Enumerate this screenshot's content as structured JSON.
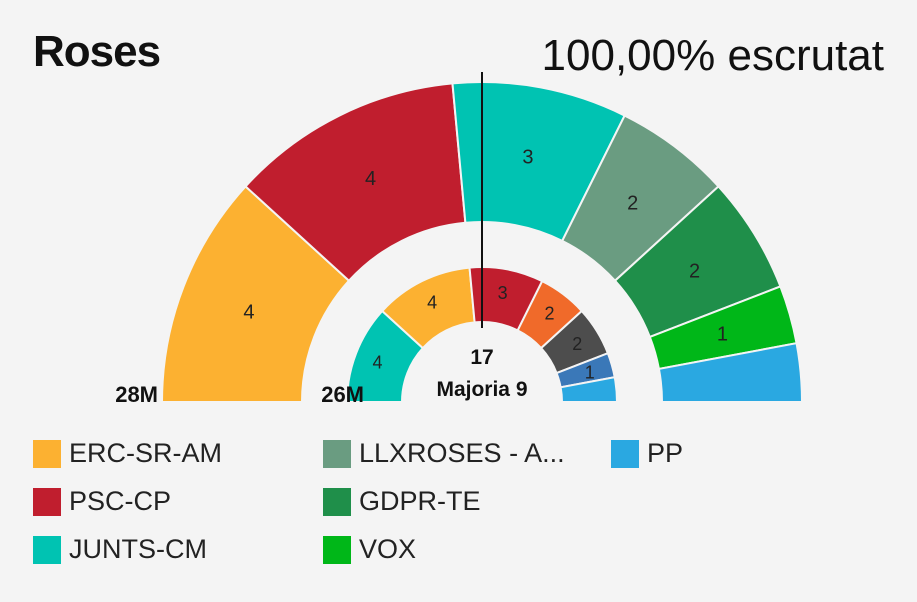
{
  "header": {
    "title": "Roses",
    "count_status": "100,00% escrutat"
  },
  "chart_data": {
    "type": "parliament-semicircle",
    "total_seats": 17,
    "majority_label": "Majoria 9",
    "rings": [
      {
        "label": "28M",
        "seats": [
          {
            "party": "ERC-SR-AM",
            "value": 4,
            "color": "#fcb131"
          },
          {
            "party": "PSC-CP",
            "value": 4,
            "color": "#c01e2e"
          },
          {
            "party": "JUNTS-CM",
            "value": 3,
            "color": "#00c3b2"
          },
          {
            "party": "LLXROSES - A...",
            "value": 2,
            "color": "#6a9c81"
          },
          {
            "party": "GDPR-TE",
            "value": 2,
            "color": "#1f8f4a"
          },
          {
            "party": "VOX",
            "value": 1,
            "color": "#00b718"
          },
          {
            "party": "PP",
            "value": 1,
            "color": "#2aa8e1"
          }
        ]
      },
      {
        "label": "26M",
        "seats": [
          {
            "party": "JUNTS-CM",
            "value": 4,
            "color": "#00c3b2"
          },
          {
            "party": "ERC-SR-AM",
            "value": 4,
            "color": "#fcb131"
          },
          {
            "party": "PSC-CP",
            "value": 3,
            "color": "#c01e2e"
          },
          {
            "party": "",
            "value": 2,
            "color": "#f06a2a"
          },
          {
            "party": "",
            "value": 2,
            "color": "#4d4d4d"
          },
          {
            "party": "",
            "value": 1,
            "color": "#3a78b8"
          },
          {
            "party": "PP",
            "value": 1,
            "color": "#2aa8e1"
          }
        ]
      }
    ],
    "legend": [
      {
        "label": "ERC-SR-AM",
        "color": "#fcb131"
      },
      {
        "label": "PSC-CP",
        "color": "#c01e2e"
      },
      {
        "label": "JUNTS-CM",
        "color": "#00c3b2"
      },
      {
        "label": "LLXROSES - A...",
        "color": "#6a9c81"
      },
      {
        "label": "GDPR-TE",
        "color": "#1f8f4a"
      },
      {
        "label": "VOX",
        "color": "#00b718"
      },
      {
        "label": "PP",
        "color": "#2aa8e1"
      }
    ]
  }
}
